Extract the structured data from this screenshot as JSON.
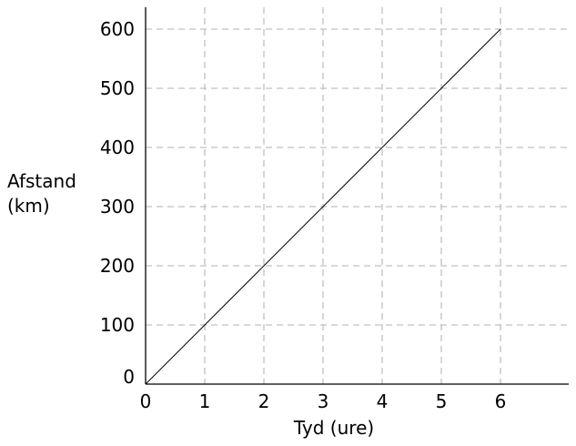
{
  "chart_data": {
    "type": "line",
    "title": "",
    "xlabel": "Tyd (ure)",
    "ylabel_lines": [
      "Afstand",
      "(km)"
    ],
    "xlim": [
      0,
      7.1
    ],
    "ylim": [
      0,
      640
    ],
    "x_ticks": [
      0,
      1,
      2,
      3,
      4,
      5,
      6
    ],
    "y_ticks": [
      0,
      100,
      200,
      300,
      400,
      500,
      600
    ],
    "grid": true,
    "grid_color": "#c0c0c0",
    "line_color": "#000000",
    "series": [
      {
        "x": [
          0,
          6
        ],
        "y": [
          0,
          600
        ]
      }
    ]
  }
}
